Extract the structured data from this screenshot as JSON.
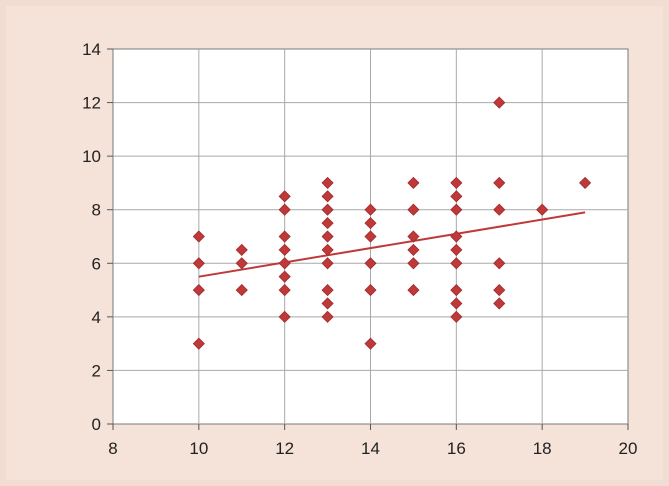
{
  "chart_data": {
    "type": "scatter",
    "title": "",
    "xlabel": "",
    "ylabel": "",
    "xlim": [
      8,
      20
    ],
    "ylim": [
      0,
      14
    ],
    "xticks": [
      8,
      10,
      12,
      14,
      16,
      18,
      20
    ],
    "yticks": [
      0,
      2,
      4,
      6,
      8,
      10,
      12,
      14
    ],
    "grid": true,
    "colors": {
      "marker": "#c0393a",
      "trendline": "#c0393a",
      "plot_background": "#ffffff",
      "figure_background": "#f5e2d8"
    },
    "points": [
      [
        10,
        7
      ],
      [
        10,
        6
      ],
      [
        10,
        5
      ],
      [
        10,
        3
      ],
      [
        11,
        6.5
      ],
      [
        11,
        6
      ],
      [
        11,
        5
      ],
      [
        12,
        8.5
      ],
      [
        12,
        8
      ],
      [
        12,
        7
      ],
      [
        12,
        6.5
      ],
      [
        12,
        6
      ],
      [
        12,
        5.5
      ],
      [
        12,
        5
      ],
      [
        12,
        4
      ],
      [
        13,
        9
      ],
      [
        13,
        8.5
      ],
      [
        13,
        8
      ],
      [
        13,
        7.5
      ],
      [
        13,
        7
      ],
      [
        13,
        6.5
      ],
      [
        13,
        6
      ],
      [
        13,
        5
      ],
      [
        13,
        4.5
      ],
      [
        13,
        4
      ],
      [
        14,
        8
      ],
      [
        14,
        7.5
      ],
      [
        14,
        7
      ],
      [
        14,
        6
      ],
      [
        14,
        5
      ],
      [
        14,
        3
      ],
      [
        15,
        9
      ],
      [
        15,
        8
      ],
      [
        15,
        7
      ],
      [
        15,
        6.5
      ],
      [
        15,
        6
      ],
      [
        15,
        5
      ],
      [
        16,
        9
      ],
      [
        16,
        8.5
      ],
      [
        16,
        8
      ],
      [
        16,
        7
      ],
      [
        16,
        6.5
      ],
      [
        16,
        6
      ],
      [
        16,
        5
      ],
      [
        16,
        4.5
      ],
      [
        16,
        4
      ],
      [
        17,
        12
      ],
      [
        17,
        9
      ],
      [
        17,
        8
      ],
      [
        17,
        6
      ],
      [
        17,
        5
      ],
      [
        17,
        4.5
      ],
      [
        18,
        8
      ],
      [
        19,
        9
      ]
    ],
    "trendline": {
      "x": [
        10,
        19
      ],
      "y": [
        5.5,
        7.9
      ]
    }
  }
}
